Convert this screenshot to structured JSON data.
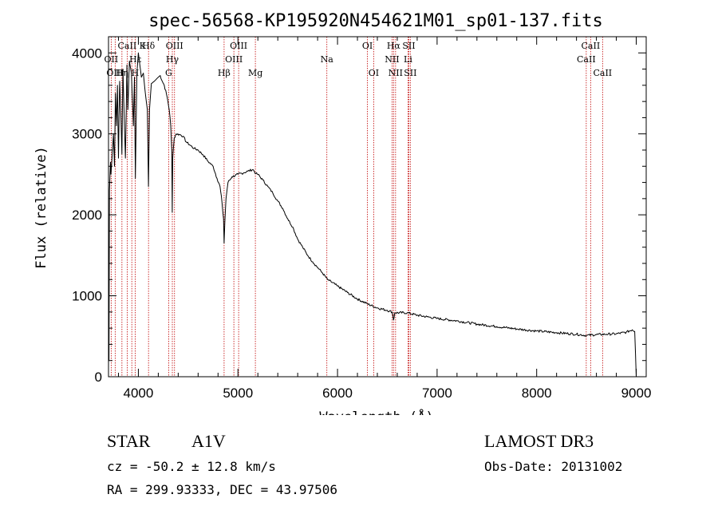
{
  "chart_data": {
    "type": "line",
    "title": "spec-56568-KP195920N454621M01_sp01-137.fits",
    "xlabel": "Wavelength (Å)",
    "ylabel": "Flux (relative)",
    "xlim": [
      3700,
      9100
    ],
    "ylim": [
      0,
      4200
    ],
    "xticks": [
      4000,
      5000,
      6000,
      7000,
      8000,
      9000
    ],
    "yticks": [
      0,
      1000,
      2000,
      3000,
      4000
    ],
    "series": [
      {
        "name": "flux",
        "points": [
          [
            3700,
            0
          ],
          [
            3702,
            1100
          ],
          [
            3705,
            200
          ],
          [
            3710,
            2300
          ],
          [
            3720,
            2650
          ],
          [
            3725,
            2500
          ],
          [
            3735,
            2700
          ],
          [
            3750,
            3000
          ],
          [
            3760,
            2600
          ],
          [
            3770,
            3500
          ],
          [
            3780,
            3100
          ],
          [
            3790,
            3600
          ],
          [
            3800,
            2700
          ],
          [
            3812,
            3650
          ],
          [
            3825,
            3200
          ],
          [
            3835,
            2750
          ],
          [
            3845,
            3800
          ],
          [
            3860,
            3100
          ],
          [
            3870,
            2700
          ],
          [
            3885,
            3850
          ],
          [
            3895,
            3300
          ],
          [
            3910,
            3900
          ],
          [
            3930,
            3750
          ],
          [
            3950,
            3100
          ],
          [
            3960,
            3700
          ],
          [
            3970,
            2450
          ],
          [
            3985,
            3750
          ],
          [
            4000,
            4000
          ],
          [
            4030,
            3700
          ],
          [
            4050,
            3750
          ],
          [
            4070,
            3500
          ],
          [
            4090,
            3300
          ],
          [
            4101,
            2350
          ],
          [
            4112,
            3300
          ],
          [
            4130,
            3620
          ],
          [
            4160,
            3650
          ],
          [
            4200,
            3700
          ],
          [
            4220,
            3720
          ],
          [
            4240,
            3650
          ],
          [
            4260,
            3600
          ],
          [
            4290,
            3450
          ],
          [
            4310,
            3300
          ],
          [
            4325,
            3100
          ],
          [
            4335,
            2800
          ],
          [
            4340,
            2030
          ],
          [
            4345,
            2700
          ],
          [
            4360,
            2950
          ],
          [
            4380,
            3000
          ],
          [
            4420,
            2990
          ],
          [
            4450,
            2970
          ],
          [
            4480,
            2900
          ],
          [
            4520,
            2860
          ],
          [
            4560,
            2820
          ],
          [
            4600,
            2800
          ],
          [
            4650,
            2740
          ],
          [
            4700,
            2660
          ],
          [
            4750,
            2600
          ],
          [
            4790,
            2450
          ],
          [
            4820,
            2350
          ],
          [
            4840,
            2150
          ],
          [
            4855,
            1950
          ],
          [
            4861,
            1650
          ],
          [
            4868,
            1900
          ],
          [
            4880,
            2200
          ],
          [
            4900,
            2400
          ],
          [
            4940,
            2470
          ],
          [
            5000,
            2500
          ],
          [
            5060,
            2520
          ],
          [
            5100,
            2540
          ],
          [
            5150,
            2560
          ],
          [
            5180,
            2510
          ],
          [
            5200,
            2500
          ],
          [
            5250,
            2430
          ],
          [
            5300,
            2350
          ],
          [
            5350,
            2270
          ],
          [
            5400,
            2170
          ],
          [
            5450,
            2080
          ],
          [
            5500,
            1950
          ],
          [
            5550,
            1850
          ],
          [
            5600,
            1700
          ],
          [
            5650,
            1600
          ],
          [
            5700,
            1500
          ],
          [
            5750,
            1420
          ],
          [
            5800,
            1350
          ],
          [
            5850,
            1280
          ],
          [
            5900,
            1200
          ],
          [
            6000,
            1120
          ],
          [
            6100,
            1040
          ],
          [
            6200,
            960
          ],
          [
            6300,
            900
          ],
          [
            6400,
            850
          ],
          [
            6500,
            820
          ],
          [
            6550,
            800
          ],
          [
            6563,
            700
          ],
          [
            6575,
            790
          ],
          [
            6700,
            790
          ],
          [
            6800,
            760
          ],
          [
            6900,
            740
          ],
          [
            7000,
            720
          ],
          [
            7200,
            690
          ],
          [
            7400,
            650
          ],
          [
            7600,
            620
          ],
          [
            7800,
            590
          ],
          [
            8000,
            565
          ],
          [
            8200,
            545
          ],
          [
            8400,
            525
          ],
          [
            8500,
            510
          ],
          [
            8600,
            520
          ],
          [
            8700,
            525
          ],
          [
            8800,
            530
          ],
          [
            8900,
            550
          ],
          [
            8960,
            580
          ],
          [
            8985,
            560
          ],
          [
            9000,
            0
          ]
        ]
      }
    ],
    "line_labels": [
      {
        "label": "Hδ",
        "wave": 4102,
        "row": 0
      },
      {
        "label": "CaII K",
        "wave": 3934,
        "row": 0
      },
      {
        "label": "Hε",
        "wave": 3970,
        "row": 1
      },
      {
        "label": "OII",
        "wave": 3727,
        "row": 1
      },
      {
        "label": "OIII",
        "wave": 3767,
        "row": 2
      },
      {
        "label": "Hη",
        "wave": 3835,
        "row": 2
      },
      {
        "label": "H",
        "wave": 3968,
        "row": 2
      },
      {
        "label": "OIII",
        "wave": 4363,
        "row": 0
      },
      {
        "label": "Hγ",
        "wave": 4341,
        "row": 1
      },
      {
        "label": "G",
        "wave": 4304,
        "row": 2
      },
      {
        "label": "Hβ",
        "wave": 4861,
        "row": 2
      },
      {
        "label": "OIII",
        "wave": 5007,
        "row": 0
      },
      {
        "label": "OIII",
        "wave": 4959,
        "row": 1
      },
      {
        "label": "Mg",
        "wave": 5175,
        "row": 2
      },
      {
        "label": "Na",
        "wave": 5893,
        "row": 1
      },
      {
        "label": "OI",
        "wave": 6300,
        "row": 0
      },
      {
        "label": "OI",
        "wave": 6363,
        "row": 2
      },
      {
        "label": "Hα",
        "wave": 6563,
        "row": 0
      },
      {
        "label": "NII",
        "wave": 6548,
        "row": 1
      },
      {
        "label": "NII",
        "wave": 6583,
        "row": 2
      },
      {
        "label": "SII",
        "wave": 6716,
        "row": 0
      },
      {
        "label": "Li",
        "wave": 6708,
        "row": 1
      },
      {
        "label": "SII",
        "wave": 6731,
        "row": 2
      },
      {
        "label": "CaII",
        "wave": 8542,
        "row": 0
      },
      {
        "label": "CaII",
        "wave": 8498,
        "row": 1
      },
      {
        "label": "CaII",
        "wave": 8662,
        "row": 2
      }
    ],
    "marker_lines": [
      3727,
      3767,
      3835,
      3889,
      3934,
      3968,
      4102,
      4304,
      4341,
      4363,
      4861,
      4959,
      5007,
      5175,
      5893,
      6300,
      6363,
      6548,
      6563,
      6583,
      6708,
      6716,
      6731,
      8498,
      8542,
      8662
    ]
  },
  "info": {
    "object_class": "STAR",
    "subclass": "A1V",
    "survey": "LAMOST DR3",
    "redshift": "cz = -50.2 ± 12.8 km/s",
    "obs_date": "Obs-Date: 20131002",
    "coords": "RA = 299.93333, DEC =  43.97506"
  },
  "colors": {
    "axis": "#000000",
    "spectrum": "#000000",
    "marker": "#c00000"
  }
}
